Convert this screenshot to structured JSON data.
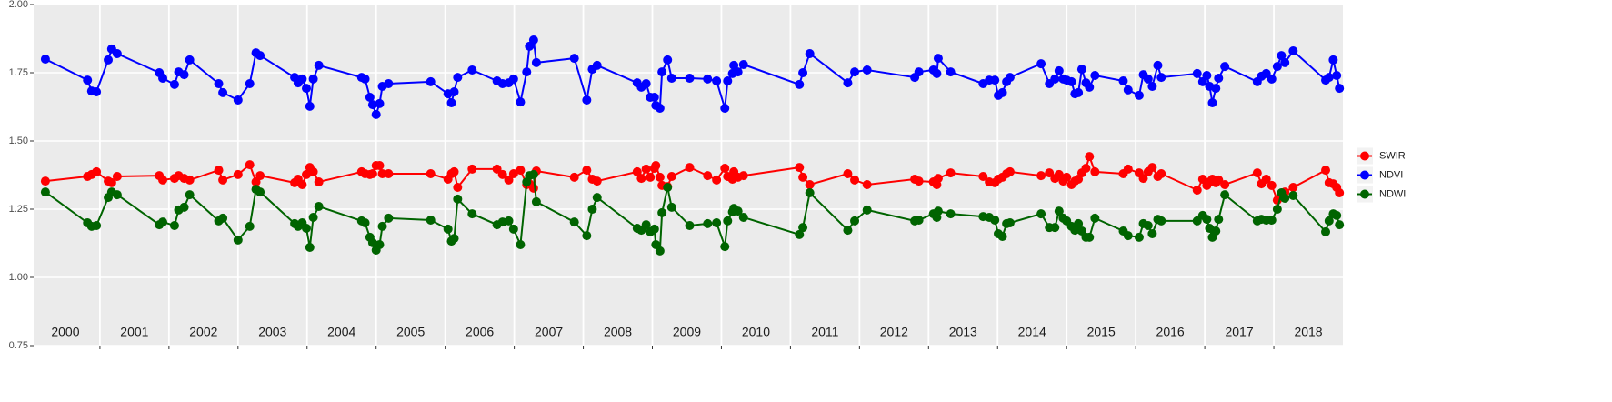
{
  "chart_data": {
    "type": "line",
    "x": [
      2000.21,
      2000.82,
      2000.88,
      2000.95,
      2001.12,
      2001.17,
      2001.25,
      2001.86,
      2001.91,
      2002.08,
      2002.14,
      2002.22,
      2002.3,
      2002.72,
      2002.78,
      2003.0,
      2003.17,
      2003.26,
      2003.32,
      2003.82,
      2003.87,
      2003.93,
      2003.99,
      2004.04,
      2004.09,
      2004.17,
      2004.79,
      2004.84,
      2004.91,
      2004.95,
      2005.0,
      2005.05,
      2005.09,
      2005.18,
      2005.79,
      2006.04,
      2006.09,
      2006.13,
      2006.18,
      2006.39,
      2006.75,
      2006.83,
      2006.92,
      2006.99,
      2007.09,
      2007.18,
      2007.22,
      2007.28,
      2007.32,
      2007.87,
      2008.05,
      2008.13,
      2008.2,
      2008.78,
      2008.84,
      2008.91,
      2008.97,
      2009.03,
      2009.05,
      2009.11,
      2009.14,
      2009.22,
      2009.28,
      2009.54,
      2009.8,
      2009.93,
      2010.05,
      2010.09,
      2010.16,
      2010.18,
      2010.24,
      2010.32,
      2011.13,
      2011.18,
      2011.28,
      2011.83,
      2011.93,
      2012.11,
      2012.8,
      2012.86,
      2013.07,
      2013.12,
      2013.14,
      2013.32,
      2013.79,
      2013.88,
      2013.96,
      2014.01,
      2014.07,
      2014.13,
      2014.18,
      2014.63,
      2014.75,
      2014.83,
      2014.89,
      2014.95,
      2015.0,
      2015.07,
      2015.12,
      2015.17,
      2015.22,
      2015.28,
      2015.33,
      2015.41,
      2015.82,
      2015.89,
      2016.05,
      2016.11,
      2016.18,
      2016.24,
      2016.32,
      2016.37,
      2016.89,
      2016.97,
      2017.03,
      2017.07,
      2017.11,
      2017.16,
      2017.2,
      2017.29,
      2017.76,
      2017.82,
      2017.89,
      2017.97,
      2018.05,
      2018.11,
      2018.16,
      2018.28,
      2018.75,
      2018.8,
      2018.86,
      2018.91,
      2018.95
    ],
    "series": [
      {
        "name": "SWIR",
        "color": "#ff0000",
        "values": [
          1.353,
          1.37,
          1.377,
          1.387,
          1.353,
          1.347,
          1.37,
          1.373,
          1.357,
          1.363,
          1.373,
          1.363,
          1.357,
          1.393,
          1.357,
          1.377,
          1.413,
          1.35,
          1.373,
          1.347,
          1.36,
          1.34,
          1.377,
          1.403,
          1.387,
          1.35,
          1.387,
          1.38,
          1.377,
          1.38,
          1.41,
          1.41,
          1.38,
          1.38,
          1.38,
          1.36,
          1.38,
          1.387,
          1.33,
          1.397,
          1.397,
          1.377,
          1.357,
          1.38,
          1.393,
          1.34,
          1.343,
          1.327,
          1.39,
          1.367,
          1.393,
          1.36,
          1.353,
          1.387,
          1.363,
          1.397,
          1.367,
          1.4,
          1.41,
          1.367,
          1.337,
          1.333,
          1.37,
          1.403,
          1.373,
          1.357,
          1.4,
          1.37,
          1.36,
          1.387,
          1.367,
          1.373,
          1.403,
          1.367,
          1.34,
          1.38,
          1.357,
          1.34,
          1.36,
          1.353,
          1.35,
          1.34,
          1.363,
          1.383,
          1.37,
          1.35,
          1.347,
          1.36,
          1.367,
          1.38,
          1.387,
          1.373,
          1.383,
          1.363,
          1.377,
          1.353,
          1.367,
          1.34,
          1.353,
          1.36,
          1.383,
          1.4,
          1.443,
          1.387,
          1.38,
          1.397,
          1.383,
          1.363,
          1.387,
          1.403,
          1.37,
          1.38,
          1.32,
          1.36,
          1.337,
          1.35,
          1.36,
          1.347,
          1.357,
          1.34,
          1.383,
          1.343,
          1.36,
          1.337,
          1.283,
          1.3,
          1.313,
          1.33,
          1.393,
          1.347,
          1.343,
          1.33,
          1.31
        ]
      },
      {
        "name": "NDVI",
        "color": "#0000ff",
        "values": [
          1.8,
          1.723,
          1.683,
          1.68,
          1.797,
          1.837,
          1.82,
          1.75,
          1.73,
          1.707,
          1.753,
          1.743,
          1.797,
          1.71,
          1.677,
          1.65,
          1.71,
          1.823,
          1.813,
          1.733,
          1.713,
          1.727,
          1.693,
          1.627,
          1.727,
          1.777,
          1.733,
          1.727,
          1.66,
          1.633,
          1.597,
          1.637,
          1.7,
          1.71,
          1.717,
          1.673,
          1.64,
          1.68,
          1.733,
          1.76,
          1.72,
          1.71,
          1.713,
          1.727,
          1.643,
          1.753,
          1.847,
          1.87,
          1.787,
          1.803,
          1.65,
          1.763,
          1.777,
          1.713,
          1.697,
          1.71,
          1.66,
          1.66,
          1.63,
          1.62,
          1.753,
          1.797,
          1.73,
          1.73,
          1.727,
          1.72,
          1.62,
          1.72,
          1.747,
          1.777,
          1.753,
          1.78,
          1.707,
          1.75,
          1.82,
          1.713,
          1.753,
          1.76,
          1.733,
          1.753,
          1.76,
          1.747,
          1.803,
          1.753,
          1.71,
          1.723,
          1.723,
          1.667,
          1.677,
          1.717,
          1.733,
          1.783,
          1.71,
          1.727,
          1.757,
          1.727,
          1.723,
          1.717,
          1.673,
          1.677,
          1.763,
          1.713,
          1.697,
          1.74,
          1.72,
          1.687,
          1.667,
          1.743,
          1.727,
          1.7,
          1.777,
          1.733,
          1.747,
          1.717,
          1.74,
          1.7,
          1.64,
          1.693,
          1.73,
          1.773,
          1.717,
          1.737,
          1.747,
          1.727,
          1.773,
          1.813,
          1.787,
          1.83,
          1.723,
          1.733,
          1.797,
          1.74,
          1.693
        ]
      },
      {
        "name": "NDWI",
        "color": "#006400",
        "values": [
          1.313,
          1.2,
          1.187,
          1.19,
          1.293,
          1.313,
          1.303,
          1.193,
          1.203,
          1.19,
          1.247,
          1.257,
          1.303,
          1.207,
          1.217,
          1.137,
          1.187,
          1.323,
          1.313,
          1.197,
          1.187,
          1.2,
          1.18,
          1.11,
          1.22,
          1.26,
          1.207,
          1.2,
          1.147,
          1.127,
          1.1,
          1.12,
          1.187,
          1.217,
          1.21,
          1.177,
          1.133,
          1.143,
          1.287,
          1.233,
          1.193,
          1.203,
          1.207,
          1.177,
          1.12,
          1.35,
          1.373,
          1.377,
          1.277,
          1.203,
          1.153,
          1.25,
          1.293,
          1.18,
          1.173,
          1.193,
          1.167,
          1.177,
          1.12,
          1.097,
          1.237,
          1.33,
          1.257,
          1.19,
          1.197,
          1.2,
          1.113,
          1.207,
          1.24,
          1.253,
          1.243,
          1.22,
          1.157,
          1.183,
          1.31,
          1.173,
          1.207,
          1.247,
          1.207,
          1.21,
          1.233,
          1.22,
          1.243,
          1.233,
          1.223,
          1.22,
          1.21,
          1.16,
          1.15,
          1.197,
          1.2,
          1.233,
          1.183,
          1.183,
          1.243,
          1.217,
          1.207,
          1.187,
          1.173,
          1.197,
          1.17,
          1.147,
          1.147,
          1.217,
          1.17,
          1.153,
          1.147,
          1.197,
          1.19,
          1.16,
          1.213,
          1.207,
          1.207,
          1.227,
          1.213,
          1.18,
          1.147,
          1.17,
          1.213,
          1.303,
          1.207,
          1.213,
          1.21,
          1.21,
          1.25,
          1.31,
          1.29,
          1.3,
          1.167,
          1.207,
          1.233,
          1.227,
          1.193
        ]
      }
    ],
    "year_labels": [
      "2000",
      "2001",
      "2002",
      "2003",
      "2004",
      "2005",
      "2006",
      "2007",
      "2008",
      "2009",
      "2010",
      "2011",
      "2012",
      "2013",
      "2014",
      "2015",
      "2016",
      "2017",
      "2018"
    ],
    "xlim": [
      2000.04,
      2019.0
    ],
    "xticks": [
      2001,
      2002,
      2003,
      2004,
      2005,
      2006,
      2007,
      2008,
      2009,
      2010,
      2011,
      2012,
      2013,
      2014,
      2015,
      2016,
      2017,
      2018
    ],
    "ylim": [
      0.75,
      2.0
    ],
    "yticks": [
      0.75,
      {
        "value": 1,
        "label": "1.00"
      },
      1.25,
      {
        "value": 1.5,
        "label": "1.50"
      },
      1.75,
      {
        "value": 2,
        "label": "2.00"
      }
    ],
    "grid": true,
    "legend": "right"
  }
}
